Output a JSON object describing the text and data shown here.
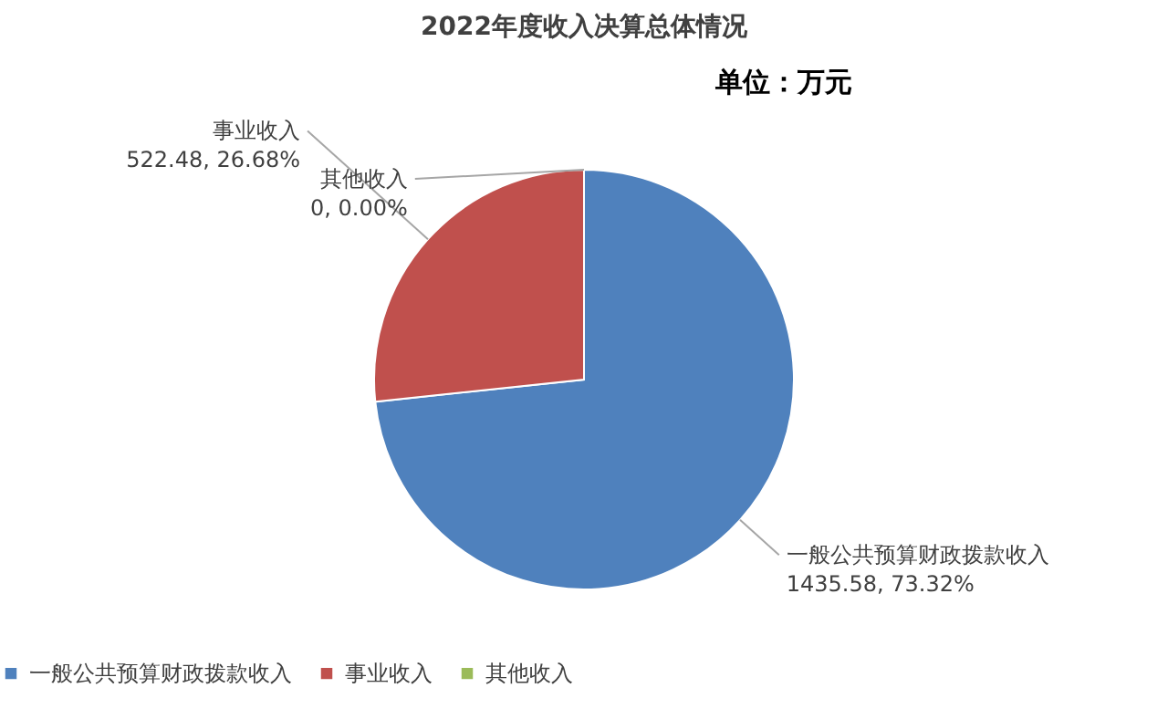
{
  "chart_data": {
    "type": "pie",
    "title": "2022年度收入决算总体情况",
    "subtitle": "单位：万元",
    "categories": [
      "一般公共预算财政拨款收入",
      "事业收入",
      "其他收入"
    ],
    "values": [
      1435.58,
      522.48,
      0
    ],
    "colors": [
      "#4f81bd",
      "#c0504d",
      "#9bbb59"
    ],
    "value_labels": [
      "1435.58, 73.32%",
      "522.48, 26.68%",
      "0, 0.00%"
    ],
    "legend": "bottom"
  }
}
